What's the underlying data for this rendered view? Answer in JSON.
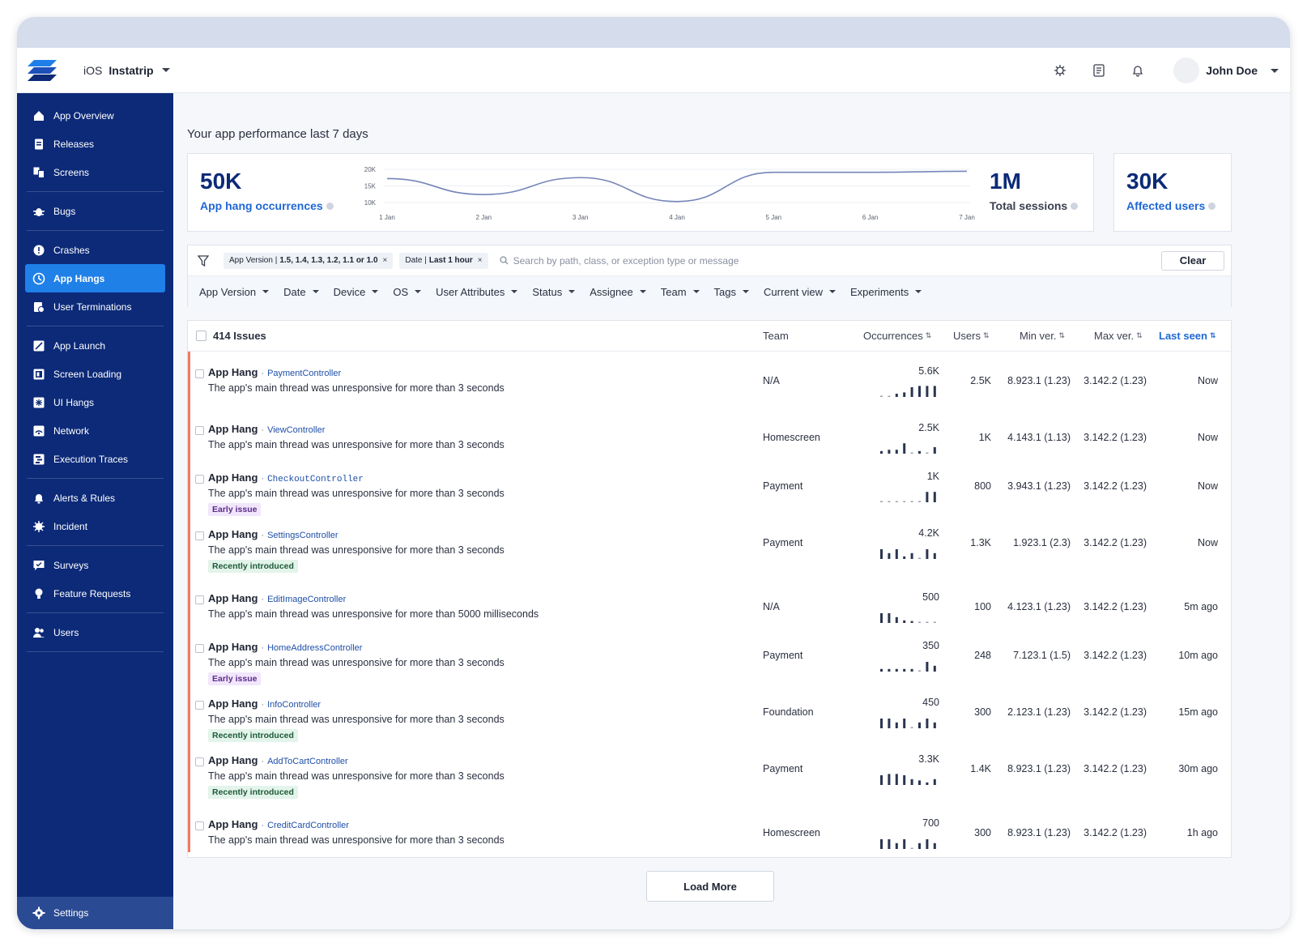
{
  "app": {
    "platform": "iOS",
    "name": "Instatrip",
    "user_name": "John Doe"
  },
  "sidebar": {
    "groups": [
      [
        {
          "label": "App Overview",
          "icon": "home-icon"
        },
        {
          "label": "Releases",
          "icon": "releases-icon"
        },
        {
          "label": "Screens",
          "icon": "screens-icon"
        }
      ],
      [
        {
          "label": "Bugs",
          "icon": "bug-icon"
        }
      ],
      [
        {
          "label": "Crashes",
          "icon": "crash-icon"
        },
        {
          "label": "App Hangs",
          "icon": "hang-icon",
          "active": true
        },
        {
          "label": "User Terminations",
          "icon": "termination-icon"
        }
      ],
      [
        {
          "label": "App Launch",
          "icon": "launch-icon"
        },
        {
          "label": "Screen Loading",
          "icon": "screen-loading-icon"
        },
        {
          "label": "UI Hangs",
          "icon": "ui-hangs-icon"
        },
        {
          "label": "Network",
          "icon": "network-icon"
        },
        {
          "label": "Execution Traces",
          "icon": "traces-icon"
        }
      ],
      [
        {
          "label": "Alerts & Rules",
          "icon": "alert-icon"
        },
        {
          "label": "Incident",
          "icon": "incident-icon"
        }
      ],
      [
        {
          "label": "Surveys",
          "icon": "survey-icon"
        },
        {
          "label": "Feature Requests",
          "icon": "feature-request-icon"
        }
      ],
      [
        {
          "label": "Users",
          "icon": "users-icon"
        }
      ]
    ],
    "settings_label": "Settings"
  },
  "performance": {
    "title": "Your app performance last 7 days",
    "hangs_value": "50K",
    "hangs_label": "App hang occurrences",
    "sessions_value": "1M",
    "sessions_label": "Total sessions",
    "users_value": "30K",
    "users_label": "Affected users"
  },
  "chart_data": {
    "type": "line",
    "title": "",
    "xlabel": "",
    "ylabel": "",
    "categories": [
      "1 Jan",
      "2 Jan",
      "3 Jan",
      "4 Jan",
      "5 Jan",
      "6 Jan",
      "7 Jan"
    ],
    "y_ticks": [
      "20K",
      "15K",
      "10K"
    ],
    "ylim": [
      10000,
      20000
    ],
    "series": [
      {
        "name": "App hang occurrences",
        "values": [
          17200,
          12400,
          17500,
          10300,
          19100,
          19100,
          19400
        ]
      }
    ],
    "color": "#7585b8"
  },
  "filters": {
    "chips": [
      {
        "key": "App Version |",
        "value": "1.5, 1.4, 1.3, 1.2, 1.1 or 1.0"
      },
      {
        "key": "Date |",
        "value": "Last 1 hour"
      }
    ],
    "search_placeholder": "Search by path, class, or exception type or message",
    "clear_label": "Clear",
    "dropdowns": [
      "App Version",
      "Date",
      "Device",
      "OS",
      "User Attributes",
      "Status",
      "Assignee",
      "Team",
      "Tags",
      "Current view",
      "Experiments"
    ]
  },
  "table": {
    "issue_count": "414 Issues",
    "headers": {
      "team": "Team",
      "occurrences": "Occurrences",
      "users": "Users",
      "min_ver": "Min ver.",
      "max_ver": "Max ver.",
      "last_seen": "Last seen"
    },
    "rows": [
      {
        "kind": "App Hang",
        "controller": "PaymentController",
        "mono": false,
        "message": "The app's main thread was unresponsive for more than 3 seconds",
        "badge": "",
        "team": "N/A",
        "occurrences": "5.6K",
        "spark": [
          0.05,
          0.05,
          0.25,
          0.35,
          0.75,
          0.85,
          0.85,
          0.85
        ],
        "users": "2.5K",
        "min_ver": "8.923.1 (1.23)",
        "max_ver": "3.142.2 (1.23)",
        "last_seen": "Now"
      },
      {
        "kind": "App Hang",
        "controller": "ViewController",
        "mono": false,
        "message": "The app's main thread was unresponsive for more than 3 seconds",
        "badge": "",
        "team": "Homescreen",
        "occurrences": "2.5K",
        "spark": [
          0.2,
          0.3,
          0.3,
          0.8,
          0.05,
          0.2,
          0.05,
          0.5
        ],
        "users": "1K",
        "min_ver": "4.143.1 (1.13)",
        "max_ver": "3.142.2 (1.23)",
        "last_seen": "Now"
      },
      {
        "kind": "App Hang",
        "controller": "CheckoutController",
        "mono": true,
        "message": "The app's main thread was unresponsive for more than 3 seconds",
        "badge": "Early issue",
        "badge_type": "early",
        "team": "Payment",
        "occurrences": "1K",
        "spark": [
          0.05,
          0.05,
          0.05,
          0.05,
          0.05,
          0.05,
          0.8,
          0.8
        ],
        "users": "800",
        "min_ver": "3.943.1 (1.23)",
        "max_ver": "3.142.2 (1.23)",
        "last_seen": "Now"
      },
      {
        "kind": "App Hang",
        "controller": "SettingsController",
        "mono": false,
        "message": "The app's main thread was unresponsive for more than 3 seconds",
        "badge": "Recently introduced",
        "badge_type": "recent",
        "team": "Payment",
        "occurrences": "4.2K",
        "spark": [
          0.75,
          0.45,
          0.75,
          0.2,
          0.45,
          0.05,
          0.75,
          0.45
        ],
        "users": "1.3K",
        "min_ver": "1.923.1 (2.3)",
        "max_ver": "3.142.2 (1.23)",
        "last_seen": "Now"
      },
      {
        "kind": "App Hang",
        "controller": "EditImageController",
        "mono": false,
        "message": "The app's main thread was unresponsive for more than 5000 milliseconds",
        "badge": "",
        "team": "N/A",
        "occurrences": "500",
        "spark": [
          0.75,
          0.75,
          0.45,
          0.2,
          0.15,
          0.05,
          0.05,
          0.05
        ],
        "users": "100",
        "min_ver": "4.123.1 (1.23)",
        "max_ver": "3.142.2 (1.23)",
        "last_seen": "5m ago"
      },
      {
        "kind": "App Hang",
        "controller": "HomeAddressController",
        "mono": false,
        "message": "The app's main thread was unresponsive for more than 3 seconds",
        "badge": "Early issue",
        "badge_type": "early",
        "team": "Payment",
        "occurrences": "350",
        "spark": [
          0.2,
          0.2,
          0.2,
          0.2,
          0.2,
          0.05,
          0.75,
          0.45
        ],
        "users": "248",
        "min_ver": "7.123.1 (1.5)",
        "max_ver": "3.142.2 (1.23)",
        "last_seen": "10m ago"
      },
      {
        "kind": "App Hang",
        "controller": "InfoController",
        "mono": false,
        "message": "The app's main thread was unresponsive for more than 3 seconds",
        "badge": "Recently introduced",
        "badge_type": "recent",
        "team": "Foundation",
        "occurrences": "450",
        "spark": [
          0.75,
          0.75,
          0.45,
          0.75,
          0.05,
          0.45,
          0.75,
          0.45
        ],
        "users": "300",
        "min_ver": "2.123.1 (1.23)",
        "max_ver": "3.142.2 (1.23)",
        "last_seen": "15m ago"
      },
      {
        "kind": "App Hang",
        "controller": "AddToCartController",
        "mono": false,
        "message": "The app's main thread was unresponsive for more than 3 seconds",
        "badge": "Recently introduced",
        "badge_type": "recent",
        "team": "Payment",
        "occurrences": "3.3K",
        "spark": [
          0.75,
          0.85,
          0.85,
          0.75,
          0.45,
          0.35,
          0.2,
          0.45
        ],
        "users": "1.4K",
        "min_ver": "8.923.1 (1.23)",
        "max_ver": "3.142.2 (1.23)",
        "last_seen": "30m ago"
      },
      {
        "kind": "App Hang",
        "controller": "CreditCardController",
        "mono": false,
        "message": "The app's main thread was unresponsive for more than 3 seconds",
        "badge": "",
        "team": "Homescreen",
        "occurrences": "700",
        "spark": [
          0.75,
          0.75,
          0.45,
          0.75,
          0.05,
          0.45,
          0.75,
          0.45
        ],
        "users": "300",
        "min_ver": "8.923.1 (1.23)",
        "max_ver": "3.142.2 (1.23)",
        "last_seen": "1h ago"
      }
    ],
    "load_more_label": "Load More"
  }
}
